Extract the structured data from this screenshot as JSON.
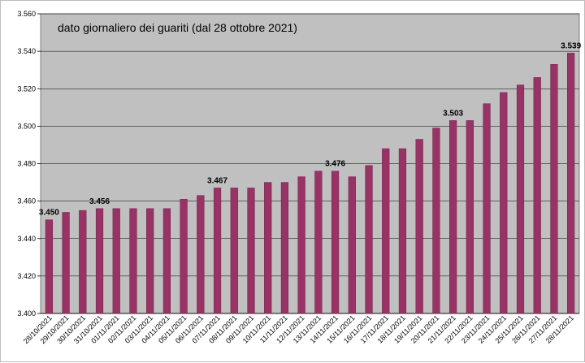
{
  "chart_data": {
    "type": "bar",
    "title": "dato giornaliero dei guariti (dal 28 ottobre 2021)",
    "xlabel": "",
    "ylabel": "",
    "ylim": [
      3400,
      3560
    ],
    "y_ticks": [
      3400,
      3420,
      3440,
      3460,
      3480,
      3500,
      3520,
      3540,
      3560
    ],
    "y_tick_labels": [
      "3.400",
      "3.420",
      "3.440",
      "3.460",
      "3.480",
      "3.500",
      "3.520",
      "3.540",
      "3.560"
    ],
    "grid": true,
    "plot_background": "#c0c0c0",
    "bar_color": "#993366",
    "categories": [
      "28/10/2021",
      "29/10/2021",
      "30/10/2021",
      "31/10/2021",
      "01/11/2021",
      "02/11/2021",
      "03/11/2021",
      "04/11/2021",
      "05/11/2021",
      "06/11/2021",
      "07/11/2021",
      "08/11/2021",
      "09/11/2021",
      "10/11/2021",
      "11/11/2021",
      "12/11/2021",
      "13/11/2021",
      "14/11/2021",
      "15/11/2021",
      "16/11/2021",
      "17/11/2021",
      "18/11/2021",
      "19/11/2021",
      "20/11/2021",
      "21/11/2021",
      "22/11/2021",
      "23/11/2021",
      "24/11/2021",
      "25/11/2021",
      "26/11/2021",
      "27/11/2021",
      "28/11/2021"
    ],
    "values": [
      3450,
      3454,
      3455,
      3456,
      3456,
      3456,
      3456,
      3456,
      3461,
      3463,
      3467,
      3467,
      3467,
      3470,
      3470,
      3473,
      3476,
      3476,
      3473,
      3479,
      3488,
      3488,
      3493,
      3499,
      3503,
      3503,
      3512,
      3518,
      3522,
      3526,
      3533,
      3539
    ],
    "data_labels": [
      {
        "index": 0,
        "text": "3.450"
      },
      {
        "index": 3,
        "text": "3.456"
      },
      {
        "index": 10,
        "text": "3.467"
      },
      {
        "index": 17,
        "text": "3.476"
      },
      {
        "index": 24,
        "text": "3.503"
      },
      {
        "index": 31,
        "text": "3.539"
      }
    ]
  }
}
